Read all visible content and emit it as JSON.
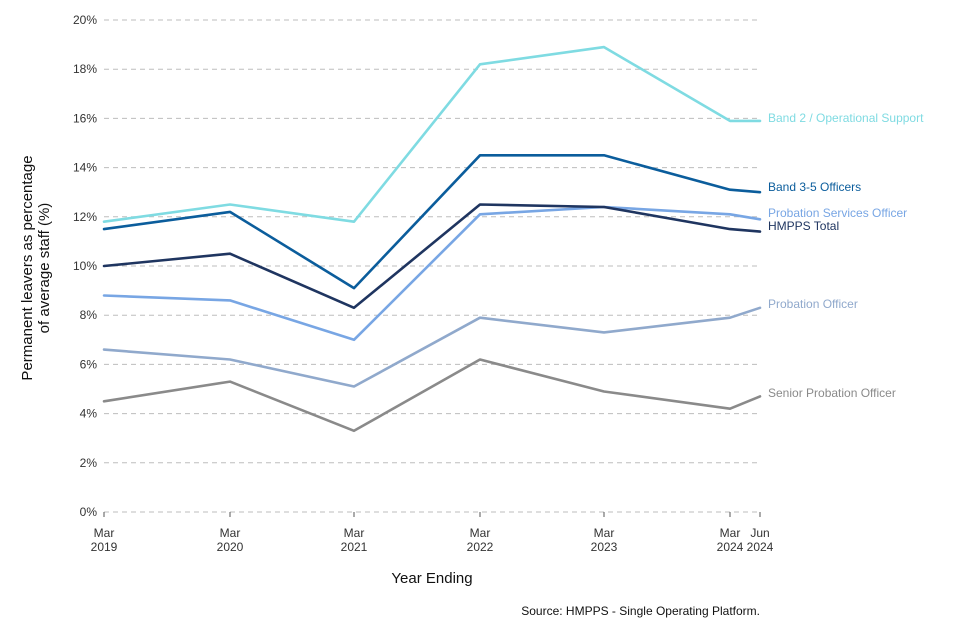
{
  "chart_data": {
    "type": "line",
    "title": "",
    "xlabel": "Year Ending",
    "ylabel_lines": [
      "Permanent leavers as percentage",
      "of average staff (%)"
    ],
    "x": [
      "Mar 2019",
      "Mar 2020",
      "Mar 2021",
      "Mar 2022",
      "Mar 2023",
      "Mar 2024",
      "Jun 2024"
    ],
    "x_ticks": [
      {
        "top": "Mar",
        "bottom": "2019"
      },
      {
        "top": "Mar",
        "bottom": "2020"
      },
      {
        "top": "Mar",
        "bottom": "2021"
      },
      {
        "top": "Mar",
        "bottom": "2022"
      },
      {
        "top": "Mar",
        "bottom": "2023"
      },
      {
        "top": "Mar",
        "bottom": "2024"
      },
      {
        "top": "Jun",
        "bottom": "2024"
      }
    ],
    "ylim": [
      0,
      20
    ],
    "y_ticks": [
      0,
      2,
      4,
      6,
      8,
      10,
      12,
      14,
      16,
      18,
      20
    ],
    "y_tick_labels": [
      "0%",
      "2%",
      "4%",
      "6%",
      "8%",
      "10%",
      "12%",
      "14%",
      "16%",
      "18%",
      "20%"
    ],
    "grid": "horizontal dashed",
    "legend": "direct labels at right end of lines",
    "series": [
      {
        "name": "Band 2 / Operational Support",
        "color": "#7fdbe2",
        "values": [
          11.8,
          12.5,
          11.8,
          18.2,
          18.9,
          15.9,
          15.9
        ]
      },
      {
        "name": "Band 3-5 Officers",
        "color": "#0b5d9c",
        "values": [
          11.5,
          12.2,
          9.1,
          14.5,
          14.5,
          13.1,
          13.0
        ]
      },
      {
        "name": "Probation Services Officer",
        "color": "#78a6e4",
        "values": [
          8.8,
          8.6,
          7.0,
          12.1,
          12.4,
          12.1,
          11.9
        ]
      },
      {
        "name": "HMPPS Total",
        "color": "#1f3560",
        "values": [
          10.0,
          10.5,
          8.3,
          12.5,
          12.4,
          11.5,
          11.4
        ]
      },
      {
        "name": "Probation Officer",
        "color": "#90a9cc",
        "values": [
          6.6,
          6.2,
          5.1,
          7.9,
          7.3,
          7.9,
          8.3
        ]
      },
      {
        "name": "Senior Probation Officer",
        "color": "#8a8a8a",
        "values": [
          4.5,
          5.3,
          3.3,
          6.2,
          4.9,
          4.2,
          4.7
        ]
      }
    ],
    "source": "Source: HMPPS - Single Operating Platform."
  }
}
